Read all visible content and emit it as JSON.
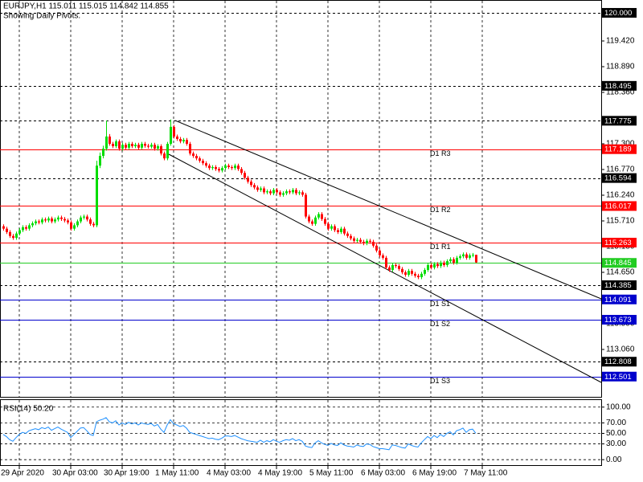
{
  "chart_data": [
    {
      "type": "candlestick",
      "title": "EURJPY,H1  115.011 115.015 114.842 114.855",
      "subtitle": "Showing Daily Pivots.",
      "up_color": "#00dd00",
      "down_color": "#ff0000",
      "xlim": [
        -1,
        186
      ],
      "xticks": [
        {
          "value": 5,
          "label": "29 Apr 2020"
        },
        {
          "value": 21,
          "label": "30 Apr 03:00"
        },
        {
          "value": 37,
          "label": "30 Apr 19:00"
        },
        {
          "value": 53,
          "label": "1 May 11:00"
        },
        {
          "value": 69,
          "label": "4 May 03:00"
        },
        {
          "value": 85,
          "label": "4 May 19:00"
        },
        {
          "value": 101,
          "label": "5 May 11:00"
        },
        {
          "value": 117,
          "label": "6 May 03:00"
        },
        {
          "value": 133,
          "label": "6 May 19:00"
        },
        {
          "value": 149,
          "label": "7 May 11:00"
        }
      ],
      "ylim": [
        112.083,
        120.248
      ],
      "yticks": [
        {
          "value": 119.42,
          "label": "119.420"
        },
        {
          "value": 118.89,
          "label": "118.890"
        },
        {
          "value": 118.36,
          "label": "118.360"
        },
        {
          "value": 117.3,
          "label": "117.300"
        },
        {
          "value": 116.77,
          "label": "116.770"
        },
        {
          "value": 116.24,
          "label": "116.240"
        },
        {
          "value": 115.71,
          "label": "115.710"
        },
        {
          "value": 115.18,
          "label": "115.180"
        },
        {
          "value": 114.65,
          "label": "114.650"
        },
        {
          "value": 113.59,
          "label": "113.590"
        },
        {
          "value": 113.06,
          "label": "113.060"
        }
      ],
      "grid": true,
      "levels": [
        {
          "value": 120.0,
          "label": "120.000",
          "color": "#000000",
          "style": "dotted"
        },
        {
          "value": 118.495,
          "label": "118.495",
          "color": "#000000",
          "style": "dotted"
        },
        {
          "value": 117.775,
          "label": "117.775",
          "color": "#000000",
          "style": "dotted"
        },
        {
          "value": 117.189,
          "label": "117.189",
          "name": "D1 R3",
          "color": "#ff0000",
          "style": "solid"
        },
        {
          "value": 116.594,
          "label": "116.594",
          "color": "#000000",
          "style": "dotted"
        },
        {
          "value": 116.017,
          "label": "116.017",
          "name": "D1 R2",
          "color": "#ff0000",
          "style": "solid"
        },
        {
          "value": 115.263,
          "label": "115.263",
          "name": "D1 R1",
          "color": "#ff0000",
          "style": "solid"
        },
        {
          "value": 114.845,
          "label": "114.845",
          "color": "#22cc22",
          "style": "solid"
        },
        {
          "value": 114.385,
          "label": "114.385",
          "color": "#000000",
          "style": "dotted"
        },
        {
          "value": 114.091,
          "label": "114.091",
          "name": "D1 S1",
          "color": "#0000cc",
          "style": "solid"
        },
        {
          "value": 113.673,
          "label": "113.673",
          "name": "D1 S2",
          "color": "#0000cc",
          "style": "solid"
        },
        {
          "value": 112.808,
          "label": "112.808",
          "color": "#000000",
          "style": "dotted"
        },
        {
          "value": 112.501,
          "label": "112.501",
          "name": "D1 S3",
          "color": "#0000cc",
          "style": "solid"
        }
      ],
      "open": [
        115.6,
        115.55,
        115.48,
        115.4,
        115.36,
        115.45,
        115.52,
        115.58,
        115.55,
        115.62,
        115.66,
        115.7,
        115.68,
        115.74,
        115.72,
        115.76,
        115.7,
        115.74,
        115.78,
        115.75,
        115.72,
        115.68,
        115.55,
        115.62,
        115.7,
        115.78,
        115.8,
        115.74,
        115.65,
        115.62,
        116.85,
        117.05,
        117.2,
        117.45,
        117.3,
        117.25,
        117.35,
        117.2,
        117.28,
        117.22,
        117.3,
        117.25,
        117.28,
        117.22,
        117.3,
        117.26,
        117.24,
        117.28,
        117.2,
        117.25,
        117.1,
        117.0,
        117.3,
        117.65,
        117.45,
        117.4,
        117.35,
        117.38,
        117.3,
        117.1,
        117.05,
        117.0,
        116.95,
        116.9,
        116.85,
        116.8,
        116.82,
        116.78,
        116.75,
        116.8,
        116.85,
        116.82,
        116.8,
        116.85,
        116.78,
        116.7,
        116.6,
        116.52,
        116.45,
        116.4,
        116.35,
        116.38,
        116.3,
        116.32,
        116.28,
        116.35,
        116.3,
        116.25,
        116.28,
        116.32,
        116.3,
        116.35,
        116.28,
        116.3,
        116.25,
        115.8,
        115.7,
        115.65,
        115.78,
        115.85,
        115.75,
        115.65,
        115.55,
        115.6,
        115.52,
        115.48,
        115.55,
        115.45,
        115.4,
        115.35,
        115.3,
        115.32,
        115.28,
        115.25,
        115.3,
        115.28,
        115.2,
        115.1,
        115.0,
        114.95,
        114.75,
        114.7,
        114.8,
        114.78,
        114.72,
        114.65,
        114.6,
        114.68,
        114.62,
        114.58,
        114.55,
        114.62,
        114.7,
        114.8,
        114.75,
        114.82,
        114.78,
        114.85,
        114.8,
        114.88,
        114.92,
        114.85,
        114.95,
        114.98,
        115.02,
        114.95,
        115.0,
        115.011
      ],
      "high": [
        115.64,
        115.59,
        115.52,
        115.44,
        115.49,
        115.56,
        115.62,
        115.62,
        115.66,
        115.7,
        115.74,
        115.74,
        115.78,
        115.78,
        115.8,
        115.8,
        115.78,
        115.82,
        115.82,
        115.79,
        115.76,
        115.72,
        115.66,
        115.74,
        115.82,
        115.84,
        115.84,
        115.78,
        115.69,
        116.95,
        117.12,
        117.26,
        117.78,
        117.5,
        117.34,
        117.39,
        117.39,
        117.32,
        117.32,
        117.34,
        117.34,
        117.32,
        117.32,
        117.34,
        117.34,
        117.3,
        117.32,
        117.32,
        117.29,
        117.29,
        117.14,
        117.34,
        117.8,
        117.69,
        117.49,
        117.44,
        117.42,
        117.42,
        117.34,
        117.14,
        117.09,
        117.04,
        116.99,
        116.94,
        116.89,
        116.86,
        116.86,
        116.82,
        116.84,
        116.89,
        116.89,
        116.86,
        116.89,
        116.89,
        116.82,
        116.74,
        116.64,
        116.56,
        116.49,
        116.44,
        116.42,
        116.42,
        116.36,
        116.36,
        116.39,
        116.39,
        116.34,
        116.32,
        116.36,
        116.36,
        116.39,
        116.39,
        116.34,
        116.34,
        116.29,
        115.84,
        115.74,
        115.82,
        115.89,
        115.89,
        115.79,
        115.69,
        115.64,
        115.64,
        115.56,
        115.59,
        115.59,
        115.49,
        115.44,
        115.39,
        115.36,
        115.36,
        115.32,
        115.34,
        115.34,
        115.32,
        115.24,
        115.14,
        115.04,
        114.99,
        114.79,
        114.84,
        114.84,
        114.82,
        114.76,
        114.69,
        114.72,
        114.72,
        114.66,
        114.62,
        114.66,
        114.74,
        114.84,
        114.84,
        114.86,
        114.86,
        114.89,
        114.89,
        114.92,
        114.96,
        114.96,
        114.99,
        115.02,
        115.06,
        115.06,
        115.04,
        115.05,
        115.015
      ],
      "low": [
        115.51,
        115.44,
        115.36,
        115.32,
        115.32,
        115.41,
        115.48,
        115.51,
        115.51,
        115.58,
        115.62,
        115.64,
        115.64,
        115.68,
        115.68,
        115.66,
        115.66,
        115.7,
        115.71,
        115.68,
        115.64,
        115.51,
        115.51,
        115.58,
        115.66,
        115.74,
        115.7,
        115.61,
        115.58,
        115.58,
        116.8,
        117.0,
        117.16,
        117.26,
        117.21,
        117.21,
        117.16,
        117.16,
        117.18,
        117.18,
        117.21,
        117.21,
        117.18,
        117.18,
        117.22,
        117.2,
        117.2,
        117.16,
        117.16,
        117.06,
        116.96,
        116.96,
        117.26,
        117.41,
        117.36,
        117.31,
        117.31,
        117.26,
        117.06,
        117.01,
        116.96,
        116.91,
        116.86,
        116.81,
        116.76,
        116.76,
        116.74,
        116.71,
        116.71,
        116.76,
        116.78,
        116.76,
        116.76,
        116.74,
        116.66,
        116.56,
        116.48,
        116.41,
        116.36,
        116.31,
        116.31,
        116.26,
        116.26,
        116.24,
        116.24,
        116.26,
        116.21,
        116.21,
        116.24,
        116.26,
        116.26,
        116.24,
        116.24,
        116.21,
        115.76,
        115.66,
        115.61,
        115.61,
        115.74,
        115.71,
        115.61,
        115.51,
        115.51,
        115.48,
        115.44,
        115.44,
        115.41,
        115.36,
        115.31,
        115.26,
        115.26,
        115.24,
        115.21,
        115.21,
        115.24,
        115.16,
        115.06,
        114.96,
        114.91,
        114.71,
        114.66,
        114.66,
        114.74,
        114.68,
        114.61,
        114.56,
        114.56,
        114.58,
        114.54,
        114.51,
        114.51,
        114.58,
        114.66,
        114.71,
        114.71,
        114.74,
        114.74,
        114.76,
        114.76,
        114.84,
        114.81,
        114.81,
        114.91,
        114.94,
        114.91,
        114.91,
        114.96,
        114.842
      ],
      "close": [
        115.55,
        115.48,
        115.4,
        115.36,
        115.45,
        115.52,
        115.58,
        115.55,
        115.62,
        115.66,
        115.7,
        115.68,
        115.74,
        115.72,
        115.76,
        115.7,
        115.74,
        115.78,
        115.75,
        115.72,
        115.68,
        115.55,
        115.62,
        115.7,
        115.78,
        115.8,
        115.74,
        115.65,
        115.62,
        116.85,
        117.05,
        117.2,
        117.45,
        117.3,
        117.25,
        117.35,
        117.2,
        117.28,
        117.22,
        117.3,
        117.25,
        117.28,
        117.22,
        117.3,
        117.26,
        117.24,
        117.28,
        117.2,
        117.25,
        117.1,
        117.0,
        117.3,
        117.65,
        117.45,
        117.4,
        117.35,
        117.38,
        117.3,
        117.1,
        117.05,
        117.0,
        116.95,
        116.9,
        116.85,
        116.8,
        116.82,
        116.78,
        116.75,
        116.8,
        116.85,
        116.82,
        116.8,
        116.85,
        116.78,
        116.7,
        116.6,
        116.52,
        116.45,
        116.4,
        116.35,
        116.38,
        116.3,
        116.32,
        116.28,
        116.35,
        116.3,
        116.25,
        116.28,
        116.32,
        116.3,
        116.35,
        116.28,
        116.3,
        116.25,
        115.8,
        115.7,
        115.65,
        115.78,
        115.85,
        115.75,
        115.65,
        115.55,
        115.6,
        115.52,
        115.48,
        115.55,
        115.45,
        115.4,
        115.35,
        115.3,
        115.32,
        115.28,
        115.25,
        115.3,
        115.28,
        115.2,
        115.1,
        115.0,
        114.95,
        114.75,
        114.7,
        114.8,
        114.78,
        114.72,
        114.65,
        114.6,
        114.68,
        114.62,
        114.58,
        114.55,
        114.62,
        114.7,
        114.8,
        114.75,
        114.82,
        114.78,
        114.85,
        114.8,
        114.88,
        114.92,
        114.85,
        114.95,
        114.98,
        115.02,
        114.95,
        115.0,
        115.011,
        114.855
      ]
    },
    {
      "type": "line",
      "title": "RSI(14) 50.20",
      "color": "#1e90ff",
      "ylim": [
        -10.4,
        113.4
      ],
      "yticks": [
        {
          "value": 100,
          "label": "100.00"
        },
        {
          "value": 70,
          "label": "70.00"
        },
        {
          "value": 50,
          "label": "50.00"
        },
        {
          "value": 30,
          "label": "30.00"
        },
        {
          "value": 0,
          "label": "0.00"
        }
      ],
      "grid": true,
      "values": [
        48,
        44,
        38,
        35,
        42,
        48,
        52,
        50,
        55,
        57,
        59,
        57,
        61,
        59,
        62,
        56,
        59,
        62,
        58,
        55,
        52,
        42,
        48,
        54,
        60,
        61,
        55,
        48,
        46,
        72,
        75,
        77,
        80,
        72,
        70,
        74,
        66,
        70,
        67,
        71,
        68,
        70,
        66,
        70,
        68,
        67,
        69,
        64,
        67,
        58,
        52,
        66,
        76,
        68,
        66,
        63,
        65,
        60,
        52,
        50,
        48,
        46,
        44,
        42,
        40,
        41,
        39,
        38,
        41,
        45,
        45,
        44,
        46,
        43,
        40,
        38,
        36,
        35,
        34,
        33,
        37,
        33,
        36,
        34,
        38,
        35,
        33,
        36,
        38,
        37,
        40,
        36,
        38,
        35,
        26,
        24,
        23,
        32,
        36,
        32,
        29,
        27,
        31,
        28,
        27,
        32,
        28,
        26,
        25,
        24,
        28,
        26,
        25,
        30,
        29,
        25,
        23,
        21,
        21,
        20,
        19,
        28,
        27,
        25,
        23,
        22,
        30,
        27,
        25,
        24,
        32,
        38,
        44,
        40,
        46,
        42,
        48,
        44,
        50,
        53,
        47,
        55,
        57,
        60,
        52,
        57,
        58,
        50.2
      ]
    }
  ]
}
